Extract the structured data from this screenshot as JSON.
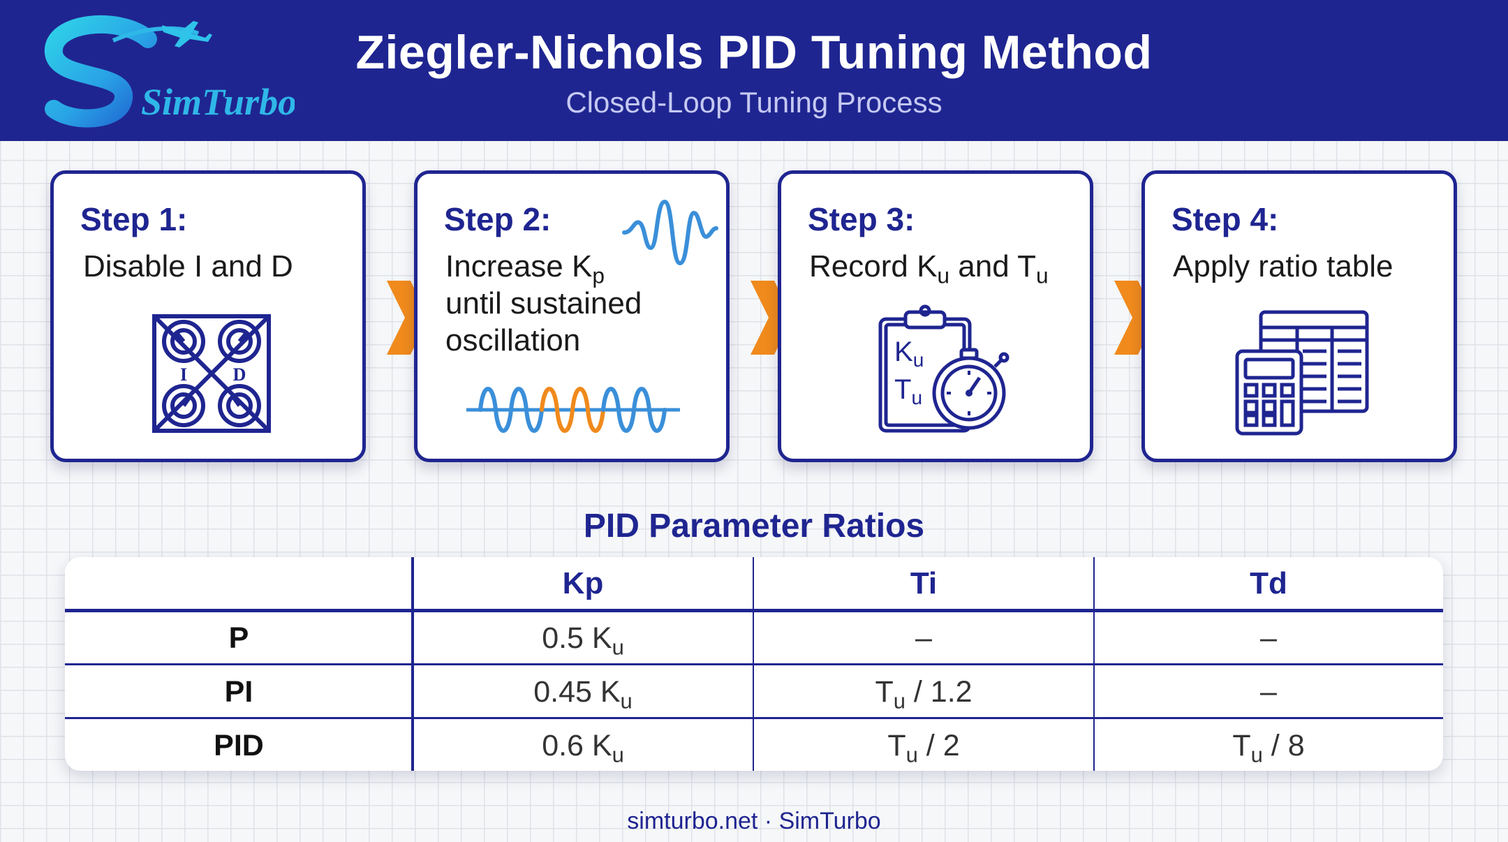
{
  "header": {
    "logo_text": "SimTurbo",
    "title": "Ziegler-Nichols PID Tuning Method",
    "subtitle": "Closed-Loop Tuning Process"
  },
  "steps": [
    {
      "title": "Step 1:",
      "lines": [
        "Disable I and D"
      ]
    },
    {
      "title": "Step 2:",
      "lines": [
        "Increase K",
        "until sustained",
        "oscillation"
      ],
      "sub": "p"
    },
    {
      "title": "Step 3:",
      "lines": [
        "Record K",
        " and T"
      ],
      "sub": "u"
    },
    {
      "title": "Step 4:",
      "lines": [
        "Apply ratio table"
      ]
    }
  ],
  "icons": {
    "step1": "disabled-knobs-icon",
    "step1_labels": [
      "I",
      "D"
    ],
    "step2_top": "oscillation-wave-icon",
    "step2_bottom": "sustained-oscillation-wave-icon",
    "step3": "clipboard-stopwatch-icon",
    "step3_labels": {
      "k": "K",
      "t": "T",
      "sub": "u"
    },
    "step4": "calculator-table-icon"
  },
  "ratios": {
    "title": "PID Parameter Ratios",
    "columns": [
      "",
      "Kp",
      "Ti",
      "Td"
    ],
    "rows": [
      {
        "label": "P",
        "kp": "0.5 K",
        "ti": "–",
        "td": "–"
      },
      {
        "label": "PI",
        "kp": "0.45 K",
        "ti": "T",
        "ti_tail": " / 1.2",
        "td": "–"
      },
      {
        "label": "PID",
        "kp": "0.6 K",
        "ti": "T",
        "ti_tail": " / 2",
        "td": "T",
        "td_tail": " / 8"
      }
    ],
    "sub": "u"
  },
  "colors": {
    "primary": "#1f2590",
    "accent_orange": "#f08a1c",
    "wave_blue": "#3a8fd9"
  },
  "footer": "simturbo.net · SimTurbo"
}
